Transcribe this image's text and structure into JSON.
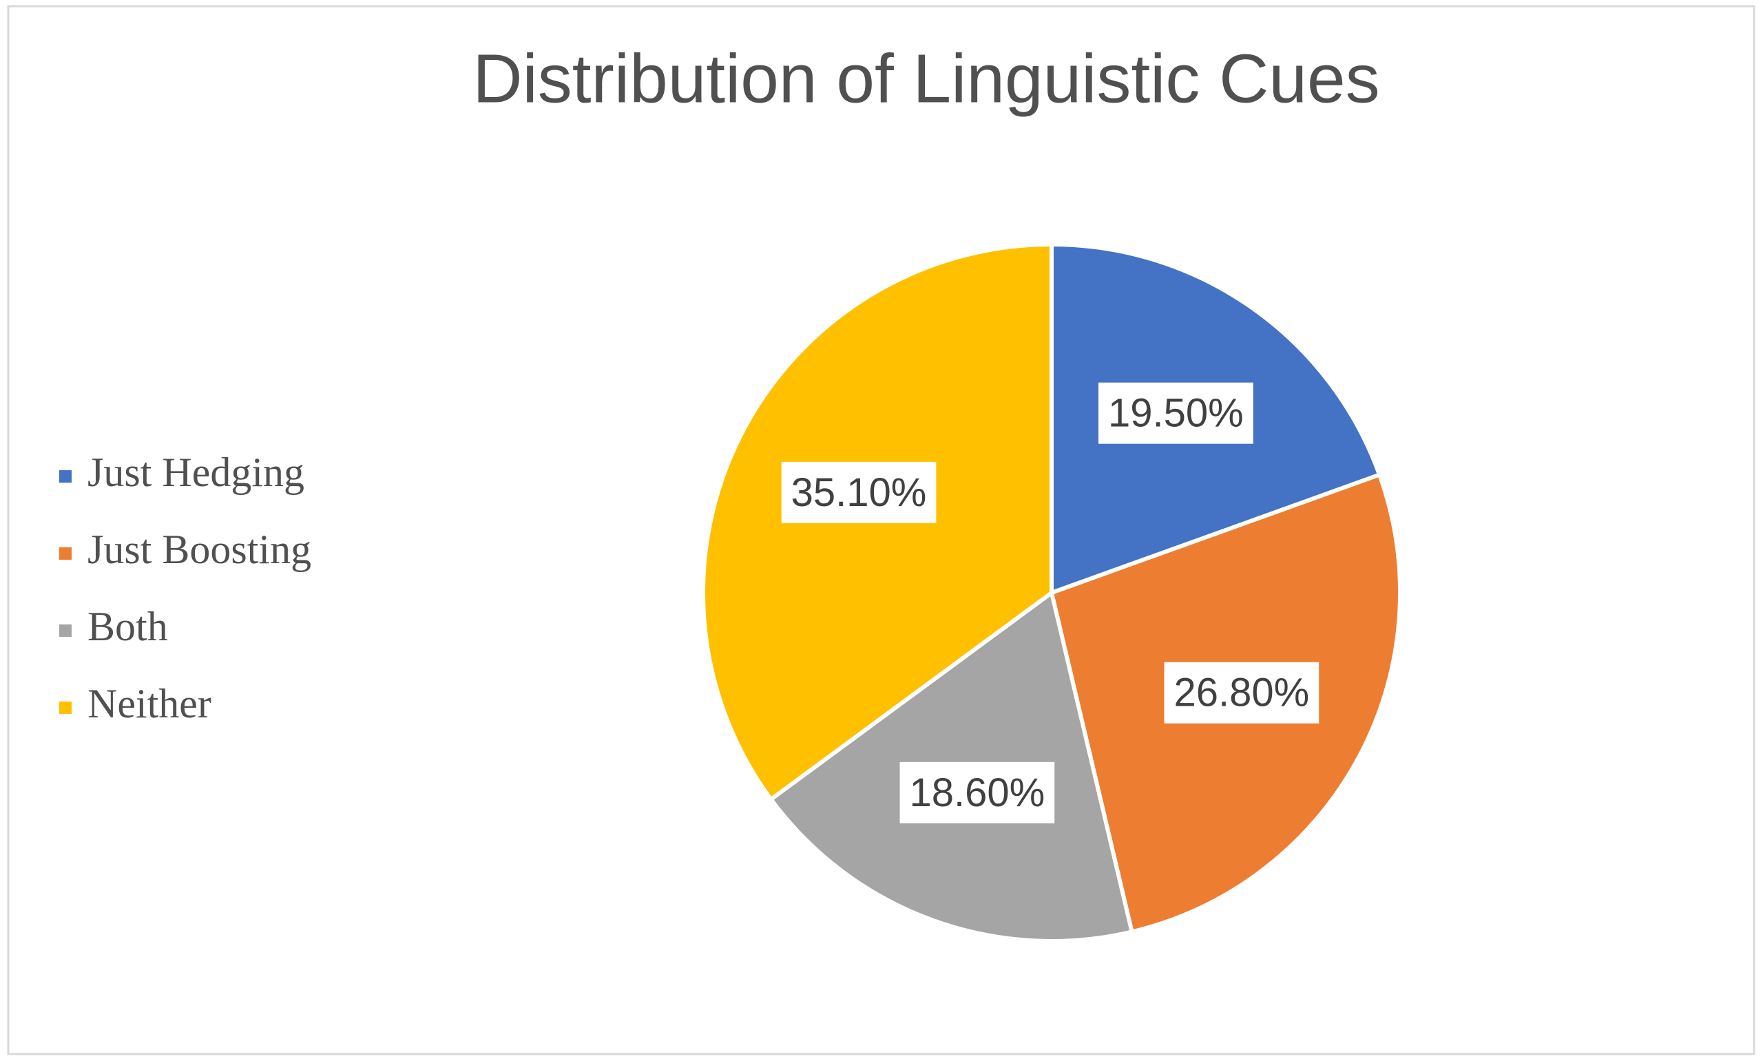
{
  "chart_data": {
    "type": "pie",
    "title": "Distribution of Linguistic Cues",
    "categories": [
      "Just Hedging",
      "Just Boosting",
      "Both",
      "Neither"
    ],
    "values": [
      19.5,
      26.8,
      18.6,
      35.1
    ],
    "value_labels": [
      "19.50%",
      "26.80%",
      "18.60%",
      "35.10%"
    ],
    "colors": [
      "#4472c4",
      "#ed7d31",
      "#a5a5a5",
      "#ffc000"
    ],
    "legend": "left"
  }
}
